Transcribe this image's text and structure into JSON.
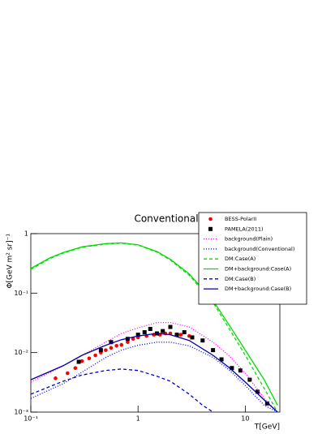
{
  "chart_data": {
    "type": "line",
    "title": "Conventional",
    "xlabel": "T[GeV]",
    "ylabel": "Φ[GeV m² sr]⁻¹",
    "log_x": true,
    "log_y": true,
    "xlim": [
      0.1,
      21
    ],
    "ylim": [
      0.001,
      1
    ],
    "xticks": [
      {
        "value": 0.1,
        "label": "10⁻¹"
      },
      1,
      {
        "value": 10,
        "label": "10"
      }
    ],
    "yticks": [
      {
        "value": 0.001,
        "label": "10⁻³"
      },
      {
        "value": 0.01,
        "label": "10⁻²"
      },
      {
        "value": 0.1,
        "label": "10⁻¹"
      },
      1
    ],
    "legend": "upper right",
    "series": [
      {
        "name": "BESS-PolarII",
        "color": "#ff0000",
        "style": "points",
        "marker": "circle",
        "x": [
          0.17,
          0.22,
          0.26,
          0.3,
          0.35,
          0.4,
          0.45,
          0.5,
          0.56,
          0.63,
          0.7,
          0.8,
          0.9,
          1.0,
          1.2,
          1.4,
          1.6,
          1.8,
          2.0,
          2.5,
          3.0
        ],
        "values": [
          0.0037,
          0.0045,
          0.0055,
          0.0072,
          0.008,
          0.009,
          0.01,
          0.011,
          0.012,
          0.013,
          0.0135,
          0.015,
          0.017,
          0.018,
          0.019,
          0.02,
          0.02,
          0.021,
          0.021,
          0.02,
          0.019
        ]
      },
      {
        "name": "PAMELA(2011)",
        "color": "#000000",
        "style": "points",
        "marker": "square",
        "x": [
          0.28,
          0.45,
          0.56,
          0.8,
          1.0,
          1.15,
          1.3,
          1.5,
          1.7,
          2.0,
          2.3,
          2.7,
          3.2,
          4.0,
          5.0,
          6.0,
          7.5,
          9,
          11,
          13,
          16
        ],
        "values": [
          0.007,
          0.011,
          0.015,
          0.017,
          0.02,
          0.022,
          0.025,
          0.021,
          0.023,
          0.027,
          0.02,
          0.022,
          0.018,
          0.016,
          0.011,
          0.0077,
          0.0055,
          0.005,
          0.0035,
          0.0022,
          0.0014
        ]
      },
      {
        "name": "background(Plain)",
        "color": "#ff00ff",
        "style": "line",
        "dash": "1,2",
        "x": [
          0.1,
          0.2,
          0.3,
          0.5,
          0.7,
          1,
          1.5,
          2,
          3,
          5,
          7,
          10,
          15,
          20
        ],
        "values": [
          0.0032,
          0.006,
          0.009,
          0.015,
          0.021,
          0.026,
          0.032,
          0.032,
          0.027,
          0.015,
          0.009,
          0.0045,
          0.0017,
          0.001
        ]
      },
      {
        "name": "background(Conventional)",
        "color": "#0000ff",
        "style": "line",
        "dash": "1,2",
        "x": [
          0.1,
          0.2,
          0.3,
          0.5,
          0.7,
          1,
          1.5,
          2,
          3,
          5,
          7,
          10,
          15,
          20
        ],
        "values": [
          0.0017,
          0.003,
          0.0047,
          0.0083,
          0.011,
          0.0133,
          0.015,
          0.015,
          0.013,
          0.0083,
          0.0052,
          0.0028,
          0.0013,
          0.001
        ]
      },
      {
        "name": "DM:Case(A)",
        "color": "#00dd00",
        "style": "line",
        "dash": "4,3",
        "x": [
          0.1,
          0.15,
          0.2,
          0.3,
          0.5,
          0.7,
          1,
          1.5,
          2,
          3,
          5,
          7,
          10,
          15,
          20
        ],
        "values": [
          0.25,
          0.38,
          0.47,
          0.59,
          0.67,
          0.69,
          0.64,
          0.49,
          0.36,
          0.2,
          0.07,
          0.026,
          0.009,
          0.0025,
          0.001
        ]
      },
      {
        "name": "DM+background:Case(A)",
        "color": "#00dd00",
        "style": "line",
        "x": [
          0.1,
          0.15,
          0.2,
          0.3,
          0.5,
          0.7,
          1,
          1.5,
          2,
          3,
          5,
          7,
          10,
          15,
          20
        ],
        "values": [
          0.26,
          0.39,
          0.48,
          0.6,
          0.68,
          0.7,
          0.65,
          0.5,
          0.37,
          0.21,
          0.075,
          0.03,
          0.011,
          0.0035,
          0.0013
        ]
      },
      {
        "name": "DM:Case(B)",
        "color": "#0000cc",
        "style": "line",
        "dash": "4,3",
        "x": [
          0.1,
          0.2,
          0.3,
          0.5,
          0.7,
          1,
          1.5,
          2,
          3,
          4,
          5
        ],
        "values": [
          0.002,
          0.0033,
          0.0042,
          0.005,
          0.0053,
          0.005,
          0.004,
          0.0033,
          0.002,
          0.0013,
          0.001
        ]
      },
      {
        "name": "DM+background:Case(B)",
        "color": "#0000aa",
        "style": "line",
        "x": [
          0.1,
          0.2,
          0.3,
          0.5,
          0.7,
          1,
          1.5,
          2,
          3,
          5,
          7,
          10,
          15,
          20
        ],
        "values": [
          0.0035,
          0.006,
          0.009,
          0.0133,
          0.0165,
          0.019,
          0.021,
          0.02,
          0.016,
          0.009,
          0.0057,
          0.0032,
          0.0016,
          0.001
        ]
      }
    ]
  }
}
